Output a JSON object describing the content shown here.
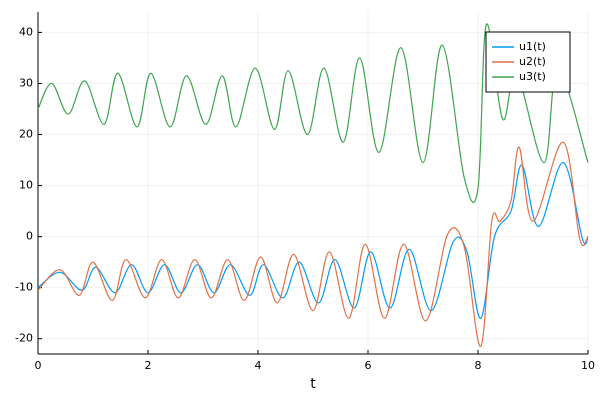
{
  "chart_data": {
    "type": "line",
    "x_label": "t",
    "xlim": [
      0,
      10
    ],
    "ylim": [
      -23,
      44
    ],
    "xticks": [
      0,
      2,
      4,
      6,
      8,
      10
    ],
    "yticks": [
      -20,
      -10,
      0,
      10,
      20,
      30,
      40
    ],
    "grid": true,
    "legend": "top-right",
    "series": [
      {
        "name": "u1(t)",
        "color": "#009af9",
        "x": [
          0,
          0.4,
          0.8,
          1.05,
          1.4,
          1.7,
          2.0,
          2.3,
          2.6,
          2.9,
          3.2,
          3.5,
          3.85,
          4.1,
          4.45,
          4.75,
          5.1,
          5.4,
          5.75,
          6.05,
          6.4,
          6.75,
          7.15,
          7.55,
          7.8,
          8.05,
          8.3,
          8.6,
          8.8,
          9.1,
          9.55,
          9.9,
          10
        ],
        "values": [
          -10,
          -7,
          -10.5,
          -6,
          -11,
          -5.5,
          -11,
          -5.5,
          -11,
          -5.5,
          -11,
          -5.5,
          -11.5,
          -5.5,
          -12,
          -5,
          -13,
          -4.5,
          -14,
          -3,
          -14,
          -2.5,
          -14.5,
          -1,
          -3,
          -16,
          0,
          5,
          14,
          2,
          14.5,
          -0.5,
          0
        ]
      },
      {
        "name": "u2(t)",
        "color": "#e26f46",
        "x": [
          0,
          0.4,
          0.75,
          1.0,
          1.35,
          1.6,
          1.95,
          2.25,
          2.55,
          2.85,
          3.15,
          3.45,
          3.75,
          4.05,
          4.35,
          4.65,
          5.0,
          5.3,
          5.65,
          5.95,
          6.3,
          6.65,
          7.05,
          7.45,
          7.75,
          8.05,
          8.25,
          8.4,
          8.6,
          8.75,
          9.0,
          9.55,
          9.85,
          10
        ],
        "values": [
          -10.5,
          -6.5,
          -11.5,
          -5,
          -12.5,
          -4.5,
          -12,
          -4.5,
          -12,
          -4.5,
          -12,
          -4.5,
          -12.5,
          -4,
          -13,
          -3.5,
          -14.5,
          -3,
          -16,
          -1.5,
          -16,
          -1.5,
          -16.5,
          0.5,
          -2,
          -21.5,
          3,
          3,
          7,
          17.5,
          3,
          18.5,
          -0.5,
          0
        ]
      },
      {
        "name": "u3(t)",
        "color": "#3da44d",
        "x": [
          0,
          0.25,
          0.55,
          0.85,
          1.2,
          1.45,
          1.8,
          2.05,
          2.4,
          2.7,
          3.05,
          3.35,
          3.6,
          3.95,
          4.3,
          4.55,
          4.9,
          5.2,
          5.55,
          5.85,
          6.2,
          6.6,
          7.0,
          7.35,
          7.75,
          8.0,
          8.15,
          8.45,
          8.7,
          9.2,
          9.45,
          10
        ],
        "values": [
          25,
          30,
          24,
          30.5,
          22,
          32,
          21.5,
          32,
          21.5,
          31.5,
          22,
          31.5,
          21.5,
          33,
          21,
          32.5,
          20,
          33,
          18.5,
          35,
          16.5,
          37,
          14.5,
          37.5,
          11.5,
          9.5,
          41.5,
          23,
          32,
          14.5,
          33,
          14.5
        ]
      }
    ]
  }
}
